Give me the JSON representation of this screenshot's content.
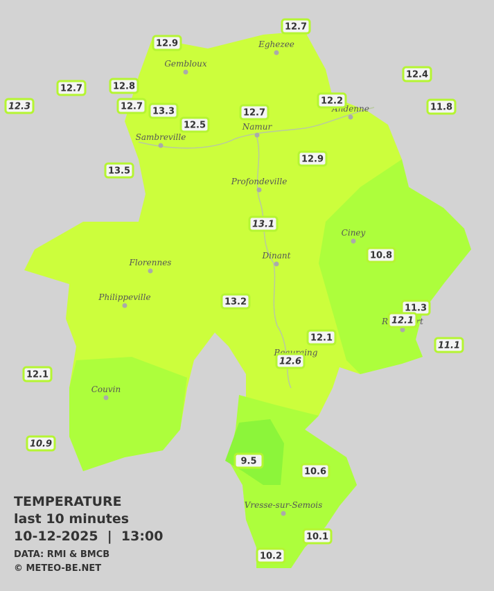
{
  "legend": {
    "title": "TEMPERATURE",
    "subtitle": "last 10 minutes",
    "datetime": "10-12-2025  |  13:00",
    "source": "DATA: RMI & BMCB",
    "copyright": "© METEO-BE.NET"
  },
  "cities": [
    "Eghezee",
    "Gembloux",
    "Andenne",
    "Namur",
    "Sambreville",
    "Profondeville",
    "Ciney",
    "Florennes",
    "Dinant",
    "Philippeville",
    "Rochefort",
    "Beauraing",
    "Couvin",
    "Vresse-sur-Semois"
  ],
  "readings": [
    12.7,
    12.9,
    12.7,
    12.8,
    12.3,
    12.7,
    13.3,
    12.5,
    12.7,
    12.2,
    12.4,
    11.8,
    13.5,
    12.9,
    13.1,
    10.8,
    13.2,
    11.3,
    12.1,
    12.1,
    11.1,
    12.6,
    12.1,
    10.9,
    9.5,
    10.6,
    10.1,
    10.2
  ]
}
